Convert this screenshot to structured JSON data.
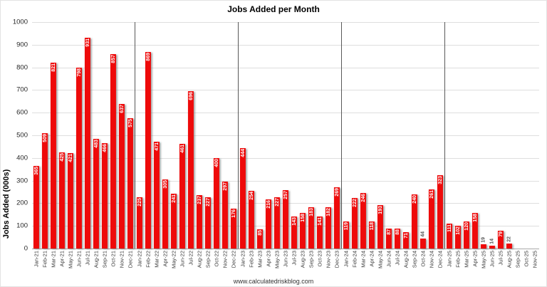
{
  "chart_data": {
    "type": "bar",
    "title": "Jobs Added per Month",
    "ylabel": "Jobs Added (000s)",
    "xlabel": "",
    "source_text": "www.calculatedriskblog.com",
    "ylim": [
      0,
      1000
    ],
    "ytick_step": 100,
    "grid": true,
    "legend": "none",
    "bar_color": "#ee0a0a",
    "year_separator_indices": [
      12,
      24,
      36,
      48
    ],
    "categories": [
      "Jan-21",
      "Feb-21",
      "Mar-21",
      "Apr-21",
      "May-21",
      "Jun-21",
      "Jul-21",
      "Aug-21",
      "Sep-21",
      "Oct-21",
      "Nov-21",
      "Dec-21",
      "Jan-22",
      "Feb-22",
      "Mar-22",
      "Apr-22",
      "May-22",
      "Jun-22",
      "Jul-22",
      "Aug-22",
      "Sep-22",
      "Oct-22",
      "Nov-22",
      "Dec-22",
      "Jan-23",
      "Feb-23",
      "Mar-23",
      "Apr-23",
      "May-23",
      "Jun-23",
      "Jul-23",
      "Aug-23",
      "Sep-23",
      "Oct-23",
      "Nov-23",
      "Dec-23",
      "Jan-24",
      "Feb-24",
      "Mar-24",
      "Apr-24",
      "May-24",
      "Jun-24",
      "Jul-24",
      "Aug-24",
      "Sep-24",
      "Oct-24",
      "Nov-24",
      "Dec-24",
      "Jan-25",
      "Feb-25",
      "Mar-25",
      "Apr-25",
      "May-25",
      "Jun-25",
      "Jul-25",
      "Aug-25",
      "Sep-25",
      "Oct-25",
      "Nov-25"
    ],
    "values": [
      365,
      509,
      821,
      425,
      421,
      798,
      931,
      483,
      466,
      857,
      637,
      575,
      225,
      869,
      471,
      305,
      241,
      461,
      696,
      237,
      227,
      400,
      297,
      176,
      444,
      254,
      85,
      216,
      227,
      257,
      143,
      158,
      183,
      141,
      182,
      269,
      119,
      222,
      246,
      118,
      193,
      87,
      88,
      71,
      240,
      44,
      261,
      323,
      111,
      102,
      120,
      158,
      19,
      14,
      79,
      22,
      null,
      null,
      null
    ]
  }
}
